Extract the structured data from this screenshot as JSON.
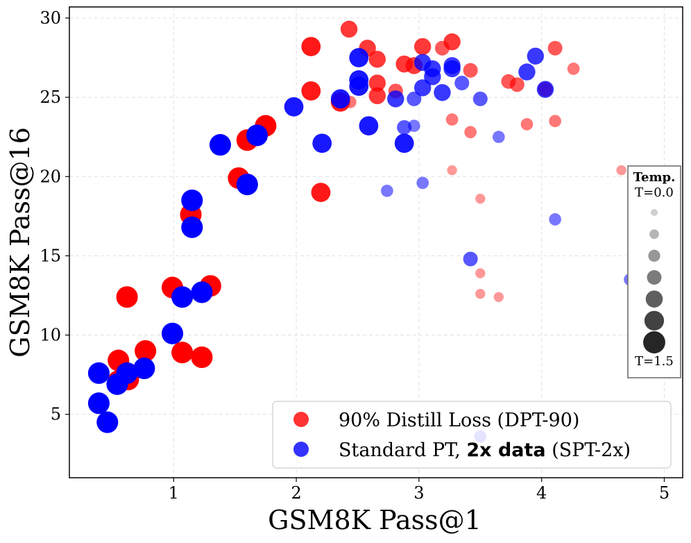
{
  "chart_data": {
    "type": "scatter",
    "xlabel": "GSM8K Pass@1",
    "ylabel": "GSM8K Pass@16",
    "xlim": [
      0.15,
      5.15
    ],
    "ylim": [
      1.0,
      30.7
    ],
    "xticks": [
      "1",
      "2",
      "3",
      "4",
      "5"
    ],
    "yticks": [
      "5",
      "10",
      "15",
      "20",
      "25",
      "30"
    ],
    "grid": true,
    "legend_position": "lower-right",
    "series": [
      {
        "name": "90% Distill Loss (DPT-90)",
        "legend_text": "90% Distill Loss (DPT-90)",
        "color": "#ff0000",
        "points": [
          {
            "x": 0.55,
            "y": 8.4,
            "t": 1.5
          },
          {
            "x": 0.55,
            "y": 7.1,
            "t": 1.5
          },
          {
            "x": 0.63,
            "y": 7.2,
            "t": 1.5
          },
          {
            "x": 0.62,
            "y": 12.4,
            "t": 1.5
          },
          {
            "x": 0.77,
            "y": 9.0,
            "t": 1.5
          },
          {
            "x": 0.99,
            "y": 13.0,
            "t": 1.5
          },
          {
            "x": 1.07,
            "y": 8.9,
            "t": 1.5
          },
          {
            "x": 1.23,
            "y": 8.6,
            "t": 1.5
          },
          {
            "x": 1.3,
            "y": 13.1,
            "t": 1.5
          },
          {
            "x": 1.14,
            "y": 17.6,
            "t": 1.5
          },
          {
            "x": 1.53,
            "y": 19.9,
            "t": 1.5
          },
          {
            "x": 1.6,
            "y": 22.3,
            "t": 1.5
          },
          {
            "x": 1.75,
            "y": 23.2,
            "t": 1.5
          },
          {
            "x": 2.12,
            "y": 28.2,
            "t": 1.25
          },
          {
            "x": 2.12,
            "y": 25.4,
            "t": 1.25
          },
          {
            "x": 2.2,
            "y": 19.0,
            "t": 1.25
          },
          {
            "x": 2.36,
            "y": 24.7,
            "t": 1.25
          },
          {
            "x": 2.43,
            "y": 29.3,
            "t": 1.0
          },
          {
            "x": 2.44,
            "y": 24.7,
            "t": 0.5
          },
          {
            "x": 2.58,
            "y": 28.1,
            "t": 1.0
          },
          {
            "x": 2.66,
            "y": 27.4,
            "t": 1.0
          },
          {
            "x": 2.66,
            "y": 25.9,
            "t": 1.0
          },
          {
            "x": 2.66,
            "y": 25.1,
            "t": 1.0
          },
          {
            "x": 2.81,
            "y": 25.4,
            "t": 0.75
          },
          {
            "x": 2.88,
            "y": 27.1,
            "t": 1.0
          },
          {
            "x": 2.96,
            "y": 27.0,
            "t": 1.0
          },
          {
            "x": 3.03,
            "y": 28.2,
            "t": 1.0
          },
          {
            "x": 3.19,
            "y": 28.1,
            "t": 0.75
          },
          {
            "x": 3.27,
            "y": 28.5,
            "t": 1.0
          },
          {
            "x": 3.27,
            "y": 23.6,
            "t": 0.5
          },
          {
            "x": 3.27,
            "y": 20.4,
            "t": 0.25
          },
          {
            "x": 3.42,
            "y": 26.7,
            "t": 0.75
          },
          {
            "x": 3.42,
            "y": 22.8,
            "t": 0.5
          },
          {
            "x": 3.5,
            "y": 18.6,
            "t": 0.25
          },
          {
            "x": 3.5,
            "y": 13.9,
            "t": 0.25
          },
          {
            "x": 3.5,
            "y": 12.6,
            "t": 0.25
          },
          {
            "x": 3.65,
            "y": 12.4,
            "t": 0.25
          },
          {
            "x": 3.73,
            "y": 26.0,
            "t": 0.75
          },
          {
            "x": 3.8,
            "y": 25.8,
            "t": 0.75
          },
          {
            "x": 3.88,
            "y": 23.3,
            "t": 0.5
          },
          {
            "x": 4.03,
            "y": 25.5,
            "t": 0.75
          },
          {
            "x": 4.11,
            "y": 28.1,
            "t": 0.75
          },
          {
            "x": 4.11,
            "y": 23.5,
            "t": 0.5
          },
          {
            "x": 4.26,
            "y": 26.8,
            "t": 0.5
          },
          {
            "x": 4.65,
            "y": 20.4,
            "t": 0.25
          }
        ]
      },
      {
        "name": "Standard PT, 2x data (SPT-2x)",
        "legend_text_pre": "Standard PT, ",
        "legend_text_bold": "2x data",
        "legend_text_post": " (SPT-2x)",
        "color": "#0000ff",
        "points": [
          {
            "x": 0.39,
            "y": 7.6,
            "t": 1.5
          },
          {
            "x": 0.39,
            "y": 5.7,
            "t": 1.5
          },
          {
            "x": 0.46,
            "y": 4.5,
            "t": 1.5
          },
          {
            "x": 0.54,
            "y": 6.9,
            "t": 1.5
          },
          {
            "x": 0.62,
            "y": 7.6,
            "t": 1.5
          },
          {
            "x": 0.76,
            "y": 7.9,
            "t": 1.5
          },
          {
            "x": 0.99,
            "y": 10.1,
            "t": 1.5
          },
          {
            "x": 1.07,
            "y": 12.4,
            "t": 1.5
          },
          {
            "x": 1.23,
            "y": 12.7,
            "t": 1.5
          },
          {
            "x": 1.15,
            "y": 18.5,
            "t": 1.5
          },
          {
            "x": 1.15,
            "y": 16.8,
            "t": 1.5
          },
          {
            "x": 1.38,
            "y": 22.0,
            "t": 1.5
          },
          {
            "x": 1.6,
            "y": 19.5,
            "t": 1.5
          },
          {
            "x": 1.68,
            "y": 22.6,
            "t": 1.5
          },
          {
            "x": 1.98,
            "y": 24.4,
            "t": 1.25
          },
          {
            "x": 2.21,
            "y": 22.1,
            "t": 1.25
          },
          {
            "x": 2.36,
            "y": 24.9,
            "t": 1.25
          },
          {
            "x": 2.51,
            "y": 27.5,
            "t": 1.25
          },
          {
            "x": 2.51,
            "y": 26.1,
            "t": 1.25
          },
          {
            "x": 2.51,
            "y": 25.7,
            "t": 1.25
          },
          {
            "x": 2.59,
            "y": 23.2,
            "t": 1.25
          },
          {
            "x": 2.74,
            "y": 19.1,
            "t": 0.5
          },
          {
            "x": 2.81,
            "y": 24.9,
            "t": 1.0
          },
          {
            "x": 2.88,
            "y": 22.1,
            "t": 1.25
          },
          {
            "x": 2.88,
            "y": 23.1,
            "t": 0.75
          },
          {
            "x": 2.96,
            "y": 24.9,
            "t": 0.75
          },
          {
            "x": 2.96,
            "y": 23.2,
            "t": 0.5
          },
          {
            "x": 3.03,
            "y": 27.2,
            "t": 1.0
          },
          {
            "x": 3.03,
            "y": 25.6,
            "t": 1.0
          },
          {
            "x": 3.03,
            "y": 19.6,
            "t": 0.5
          },
          {
            "x": 3.11,
            "y": 26.8,
            "t": 1.0
          },
          {
            "x": 3.11,
            "y": 26.3,
            "t": 1.0
          },
          {
            "x": 3.19,
            "y": 25.3,
            "t": 1.0
          },
          {
            "x": 3.27,
            "y": 27.0,
            "t": 1.0
          },
          {
            "x": 3.27,
            "y": 26.8,
            "t": 1.0
          },
          {
            "x": 3.35,
            "y": 25.9,
            "t": 0.75
          },
          {
            "x": 3.42,
            "y": 14.8,
            "t": 0.75
          },
          {
            "x": 3.5,
            "y": 24.9,
            "t": 0.75
          },
          {
            "x": 3.5,
            "y": 3.6,
            "t": 0.5
          },
          {
            "x": 3.65,
            "y": 22.5,
            "t": 0.5
          },
          {
            "x": 3.88,
            "y": 26.6,
            "t": 1.0
          },
          {
            "x": 3.95,
            "y": 27.6,
            "t": 1.0
          },
          {
            "x": 4.03,
            "y": 25.5,
            "t": 1.0
          },
          {
            "x": 4.11,
            "y": 17.3,
            "t": 0.5
          },
          {
            "x": 4.72,
            "y": 13.5,
            "t": 0.5
          }
        ]
      }
    ],
    "size_legend": {
      "title": "Temp.",
      "top_label": "T=0.0",
      "bottom_label": "T=1.5",
      "levels": [
        0.0,
        0.25,
        0.5,
        0.75,
        1.0,
        1.25,
        1.5
      ]
    }
  }
}
